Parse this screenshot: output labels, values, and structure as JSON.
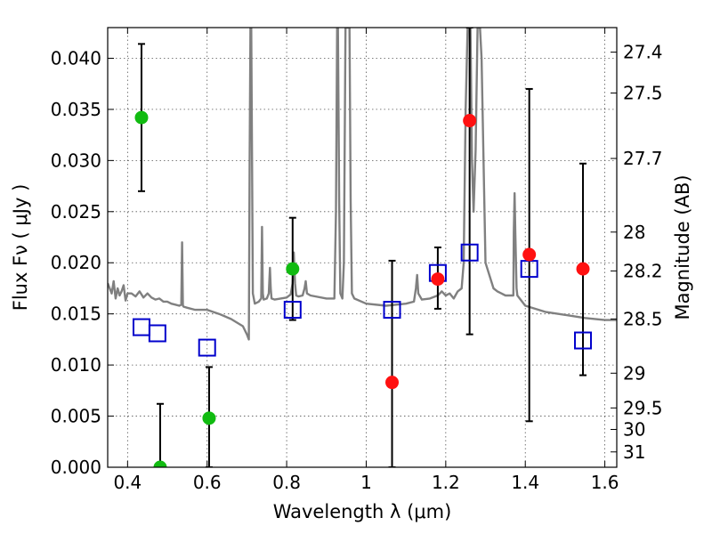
{
  "chart_data": {
    "type": "scatter",
    "xlabel": "Wavelength  λ (μm)",
    "ylabel": "Flux  Fν  ( μJy )",
    "y2label": "Magnitude (AB)",
    "xlim": [
      0.35,
      1.63
    ],
    "ylim": [
      0.0,
      0.043
    ],
    "grid": true,
    "x_ticks": [
      0.4,
      0.6,
      0.8,
      1.0,
      1.2,
      1.4,
      1.6
    ],
    "x_tick_labels": [
      "0.4",
      "0.6",
      "0.8",
      "1",
      "1.2",
      "1.4",
      "1.6"
    ],
    "y_ticks": [
      0.0,
      0.005,
      0.01,
      0.015,
      0.02,
      0.025,
      0.03,
      0.035,
      0.04
    ],
    "y_tick_labels": [
      "0.000",
      "0.005",
      "0.010",
      "0.015",
      "0.020",
      "0.025",
      "0.030",
      "0.035",
      "0.040"
    ],
    "y2_ticks": [
      {
        "label": "27.4",
        "flux": 0.0406
      },
      {
        "label": "27.5",
        "flux": 0.0366
      },
      {
        "label": "27.7",
        "flux": 0.0302
      },
      {
        "label": "28",
        "flux": 0.023
      },
      {
        "label": "28.2",
        "flux": 0.0192
      },
      {
        "label": "28.5",
        "flux": 0.0145
      },
      {
        "label": "29",
        "flux": 0.0092
      },
      {
        "label": "29.5",
        "flux": 0.0058
      },
      {
        "label": "30",
        "flux": 0.0037
      },
      {
        "label": "31",
        "flux": 0.0015
      }
    ],
    "colors": {
      "model": "#808080",
      "green_points": "#11bb11",
      "red_points": "#ff1111",
      "model_photometry": "#0000cc",
      "errorbars": "#000000",
      "grid": "#555555"
    },
    "series": [
      {
        "name": "model spectrum",
        "kind": "line",
        "color": "#808080",
        "x": [
          0.35,
          0.36,
          0.365,
          0.37,
          0.375,
          0.38,
          0.385,
          0.39,
          0.395,
          0.4,
          0.41,
          0.42,
          0.43,
          0.44,
          0.45,
          0.46,
          0.47,
          0.48,
          0.49,
          0.5,
          0.51,
          0.52,
          0.53,
          0.535,
          0.537,
          0.539,
          0.541,
          0.55,
          0.57,
          0.6,
          0.63,
          0.66,
          0.69,
          0.7,
          0.705,
          0.707,
          0.709,
          0.711,
          0.713,
          0.715,
          0.72,
          0.73,
          0.736,
          0.738,
          0.74,
          0.742,
          0.75,
          0.755,
          0.758,
          0.76,
          0.762,
          0.77,
          0.8,
          0.81,
          0.815,
          0.818,
          0.821,
          0.824,
          0.83,
          0.84,
          0.845,
          0.848,
          0.851,
          0.86,
          0.9,
          0.92,
          0.924,
          0.927,
          0.929,
          0.932,
          0.935,
          0.94,
          0.944,
          0.948,
          0.952,
          0.955,
          0.958,
          0.961,
          0.964,
          0.97,
          1.0,
          1.05,
          1.1,
          1.12,
          1.125,
          1.128,
          1.131,
          1.14,
          1.16,
          1.18,
          1.19,
          1.2,
          1.21,
          1.22,
          1.23,
          1.24,
          1.245,
          1.25,
          1.255,
          1.258,
          1.262,
          1.266,
          1.27,
          1.275,
          1.28,
          1.283,
          1.286,
          1.29,
          1.3,
          1.32,
          1.33,
          1.34,
          1.35,
          1.36,
          1.37,
          1.371,
          1.373,
          1.375,
          1.378,
          1.38,
          1.4,
          1.45,
          1.5,
          1.55,
          1.6,
          1.63
        ],
        "y": [
          0.018,
          0.017,
          0.0182,
          0.0165,
          0.0175,
          0.0168,
          0.0172,
          0.0178,
          0.0163,
          0.017,
          0.017,
          0.0167,
          0.0172,
          0.0166,
          0.017,
          0.0166,
          0.0164,
          0.0165,
          0.0162,
          0.0162,
          0.016,
          0.0159,
          0.0158,
          0.0159,
          0.022,
          0.0158,
          0.0157,
          0.0156,
          0.0154,
          0.0154,
          0.015,
          0.0145,
          0.0138,
          0.013,
          0.0125,
          0.03,
          0.043,
          0.043,
          0.03,
          0.017,
          0.016,
          0.0162,
          0.0165,
          0.0235,
          0.017,
          0.0164,
          0.0165,
          0.017,
          0.0195,
          0.0175,
          0.0165,
          0.0164,
          0.0166,
          0.0169,
          0.018,
          0.021,
          0.018,
          0.0168,
          0.0167,
          0.0168,
          0.0175,
          0.0182,
          0.017,
          0.0168,
          0.0165,
          0.0165,
          0.025,
          0.043,
          0.043,
          0.026,
          0.017,
          0.0165,
          0.02,
          0.043,
          0.043,
          0.043,
          0.043,
          0.026,
          0.017,
          0.0165,
          0.016,
          0.0158,
          0.016,
          0.0162,
          0.0175,
          0.0188,
          0.017,
          0.0164,
          0.0165,
          0.0168,
          0.0172,
          0.0168,
          0.017,
          0.0165,
          0.0172,
          0.0175,
          0.02,
          0.035,
          0.043,
          0.043,
          0.043,
          0.03,
          0.025,
          0.031,
          0.043,
          0.043,
          0.043,
          0.04,
          0.02,
          0.0175,
          0.0172,
          0.017,
          0.0168,
          0.0168,
          0.0168,
          0.023,
          0.0268,
          0.023,
          0.0175,
          0.0168,
          0.0158,
          0.0152,
          0.0149,
          0.0146,
          0.0144,
          0.0144
        ]
      },
      {
        "name": "green detections",
        "kind": "points",
        "color": "#11bb11",
        "points": [
          {
            "x": 0.435,
            "y": 0.0342,
            "err_low": 0.027,
            "err_high": 0.0414
          },
          {
            "x": 0.482,
            "y": 0.0,
            "err_low": 0.0,
            "err_high": 0.0062
          },
          {
            "x": 0.605,
            "y": 0.0048,
            "err_low": 0.0,
            "err_high": 0.0098
          },
          {
            "x": 0.815,
            "y": 0.0194,
            "err_low": 0.0144,
            "err_high": 0.0244
          }
        ]
      },
      {
        "name": "red detections",
        "kind": "points",
        "color": "#ff1111",
        "points": [
          {
            "x": 1.065,
            "y": 0.0083,
            "err_low": 0.0,
            "err_high": 0.0202
          },
          {
            "x": 1.18,
            "y": 0.0184,
            "err_low": 0.0155,
            "err_high": 0.0215
          },
          {
            "x": 1.26,
            "y": 0.0339,
            "err_low": 0.013,
            "err_high": 0.043
          },
          {
            "x": 1.41,
            "y": 0.0208,
            "err_low": 0.0045,
            "err_high": 0.037
          },
          {
            "x": 1.545,
            "y": 0.0194,
            "err_low": 0.009,
            "err_high": 0.0297
          }
        ]
      },
      {
        "name": "model photometry",
        "kind": "squares",
        "color": "#0000cc",
        "points": [
          {
            "x": 0.435,
            "y": 0.0137
          },
          {
            "x": 0.475,
            "y": 0.0131
          },
          {
            "x": 0.6,
            "y": 0.0117
          },
          {
            "x": 0.815,
            "y": 0.0154
          },
          {
            "x": 1.065,
            "y": 0.0154
          },
          {
            "x": 1.18,
            "y": 0.019
          },
          {
            "x": 1.26,
            "y": 0.021
          },
          {
            "x": 1.41,
            "y": 0.0194
          },
          {
            "x": 1.545,
            "y": 0.0124
          }
        ]
      }
    ]
  }
}
